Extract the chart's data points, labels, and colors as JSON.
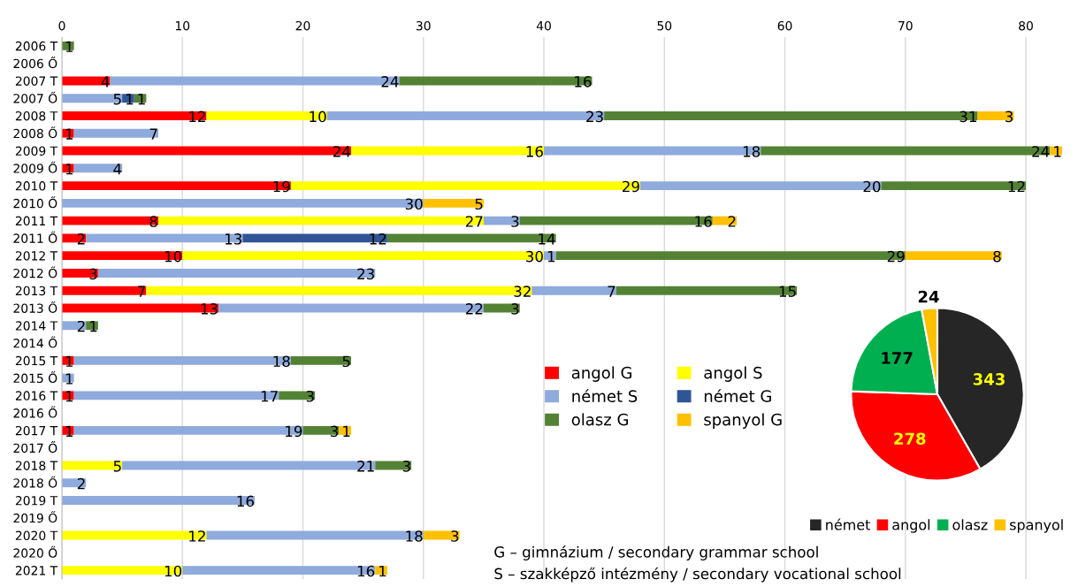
{
  "chart_data": [
    {
      "type": "bar",
      "orientation": "horizontal",
      "stacked": true,
      "categories": [
        "2006 T",
        "2006 Ő",
        "2007 T",
        "2007 Ő",
        "2008 T",
        "2008 Ő",
        "2009 T",
        "2009 Ő",
        "2010 T",
        "2010 Ő",
        "2011 T",
        "2011 Ő",
        "2012 T",
        "2012 Ő",
        "2013 T",
        "2013 Ő",
        "2014 T",
        "2014 Ő",
        "2015 T",
        "2015 Ő",
        "2016 T",
        "2016 Ő",
        "2017 T",
        "2017 Ő",
        "2018 T",
        "2018 Ő",
        "2019 T",
        "2019 Ő",
        "2020 T",
        "2020 Ő",
        "2021 T"
      ],
      "series": [
        {
          "name": "angol G",
          "color": "#ff0000",
          "values": [
            null,
            null,
            4,
            null,
            12,
            1,
            24,
            1,
            19,
            null,
            8,
            2,
            10,
            3,
            7,
            13,
            null,
            null,
            1,
            null,
            1,
            null,
            1,
            null,
            null,
            null,
            null,
            null,
            null,
            null,
            null
          ]
        },
        {
          "name": "angol S",
          "color": "#ffff00",
          "values": [
            null,
            null,
            null,
            null,
            10,
            null,
            16,
            null,
            29,
            null,
            27,
            null,
            30,
            null,
            32,
            null,
            null,
            null,
            null,
            null,
            null,
            null,
            null,
            null,
            5,
            null,
            null,
            null,
            12,
            null,
            10
          ]
        },
        {
          "name": "német S",
          "color": "#8faadc",
          "values": [
            null,
            null,
            24,
            5,
            23,
            7,
            18,
            4,
            20,
            30,
            3,
            13,
            1,
            23,
            7,
            22,
            2,
            null,
            18,
            1,
            17,
            null,
            19,
            null,
            21,
            2,
            16,
            null,
            18,
            null,
            16
          ]
        },
        {
          "name": "német G",
          "color": "#2f5597",
          "values": [
            null,
            null,
            null,
            1,
            null,
            null,
            null,
            null,
            null,
            null,
            null,
            12,
            null,
            null,
            null,
            null,
            null,
            null,
            null,
            null,
            null,
            null,
            null,
            null,
            null,
            null,
            null,
            null,
            null,
            null,
            null
          ]
        },
        {
          "name": "olasz G",
          "color": "#548235",
          "values": [
            1,
            null,
            16,
            1,
            31,
            null,
            24,
            null,
            12,
            null,
            16,
            14,
            29,
            null,
            15,
            3,
            1,
            null,
            5,
            null,
            3,
            null,
            3,
            null,
            3,
            null,
            null,
            null,
            null,
            null,
            null
          ]
        },
        {
          "name": "spanyol G",
          "color": "#ffc000",
          "values": [
            null,
            null,
            null,
            null,
            3,
            null,
            1,
            null,
            null,
            5,
            2,
            null,
            8,
            null,
            null,
            null,
            null,
            null,
            null,
            null,
            null,
            null,
            1,
            null,
            null,
            null,
            null,
            null,
            3,
            null,
            1
          ]
        }
      ],
      "xlim": [
        0,
        83.3
      ],
      "xticks": [
        0,
        10,
        20,
        30,
        40,
        50,
        60,
        70,
        80
      ],
      "grid": "x",
      "legend": "center",
      "data_labels": true,
      "annotations": [
        "G – gimnázium / secondary grammar school",
        "S – szakképző intézmény / secondary vocational school"
      ]
    },
    {
      "type": "pie",
      "categories": [
        "német",
        "angol",
        "olasz",
        "spanyol"
      ],
      "values": [
        343,
        278,
        177,
        24
      ],
      "colors": [
        "#262626",
        "#ff0000",
        "#00b050",
        "#ffc000"
      ],
      "legend": "bottom",
      "data_labels": true
    }
  ]
}
